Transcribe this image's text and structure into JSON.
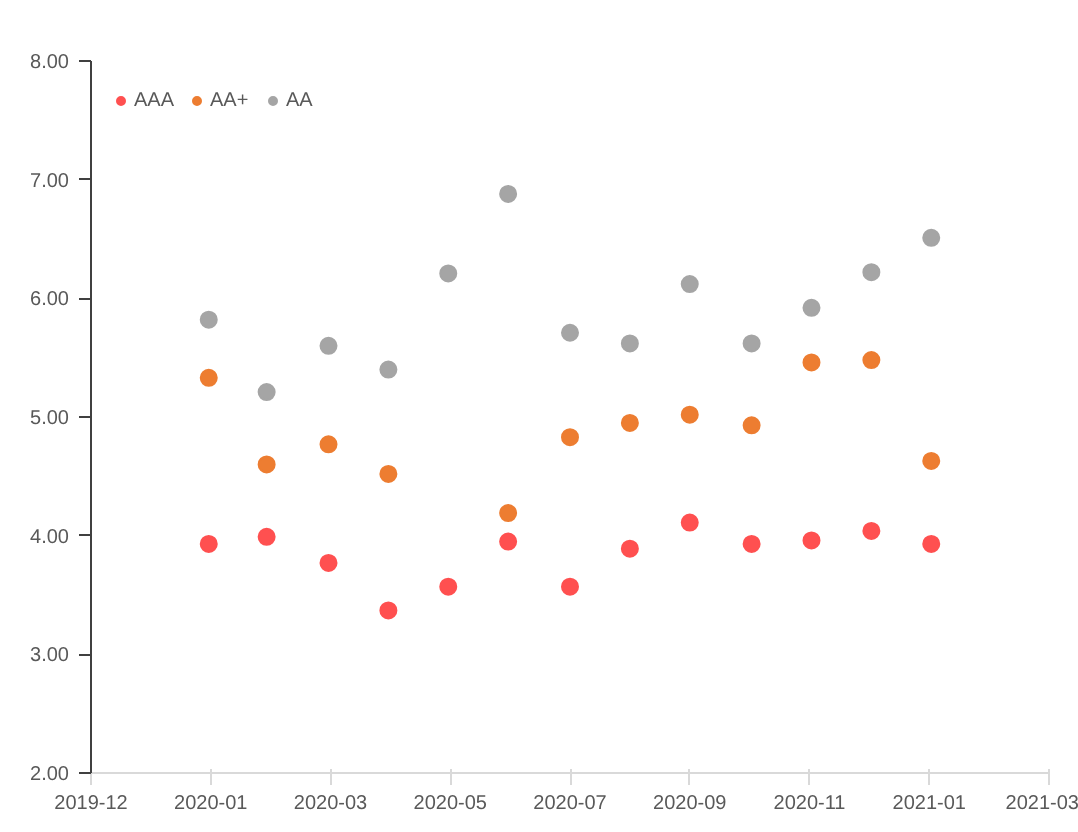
{
  "chart_data": {
    "type": "scatter",
    "x": [
      "2020-01-29",
      "2020-02-27",
      "2020-03-29",
      "2020-04-28",
      "2020-05-28",
      "2020-06-27",
      "2020-07-28",
      "2020-08-27",
      "2020-09-26",
      "2020-10-27",
      "2020-11-26",
      "2020-12-26",
      "2021-01-25"
    ],
    "series": [
      {
        "name": "AAA",
        "color": "#ff5050",
        "values": [
          3.93,
          3.99,
          3.77,
          3.37,
          3.57,
          3.95,
          3.57,
          3.89,
          4.11,
          3.93,
          3.96,
          4.04,
          3.93
        ]
      },
      {
        "name": "AA+",
        "color": "#ed7d31",
        "values": [
          5.33,
          4.6,
          4.77,
          4.52,
          null,
          4.19,
          4.83,
          4.95,
          5.02,
          4.93,
          5.46,
          5.48,
          4.63
        ]
      },
      {
        "name": "AA",
        "color": "#a5a5a5",
        "values": [
          5.82,
          5.21,
          5.6,
          5.4,
          6.21,
          6.88,
          5.71,
          5.62,
          6.12,
          5.62,
          5.92,
          6.22,
          6.51
        ]
      }
    ],
    "xlim": [
      "2019-12-01",
      "2021-03-25"
    ],
    "xticks": [
      {
        "value": "2019-12-01",
        "label": "2019-12"
      },
      {
        "value": "2020-01-30",
        "label": "2020-01"
      },
      {
        "value": "2020-03-30",
        "label": "2020-03"
      },
      {
        "value": "2020-05-29",
        "label": "2020-05"
      },
      {
        "value": "2020-07-28",
        "label": "2020-07"
      },
      {
        "value": "2020-09-26",
        "label": "2020-09"
      },
      {
        "value": "2020-11-25",
        "label": "2020-11"
      },
      {
        "value": "2021-01-24",
        "label": "2021-01"
      },
      {
        "value": "2021-03-25",
        "label": "2021-03"
      }
    ],
    "ylim": [
      2,
      8
    ],
    "yticks": [
      {
        "value": 2,
        "label": "2.00"
      },
      {
        "value": 3,
        "label": "3.00"
      },
      {
        "value": 4,
        "label": "4.00"
      },
      {
        "value": 5,
        "label": "5.00"
      },
      {
        "value": 6,
        "label": "6.00"
      },
      {
        "value": 7,
        "label": "7.00"
      },
      {
        "value": 8,
        "label": "8.00"
      }
    ],
    "grid": false,
    "legend": "top left",
    "marker": "circle"
  }
}
